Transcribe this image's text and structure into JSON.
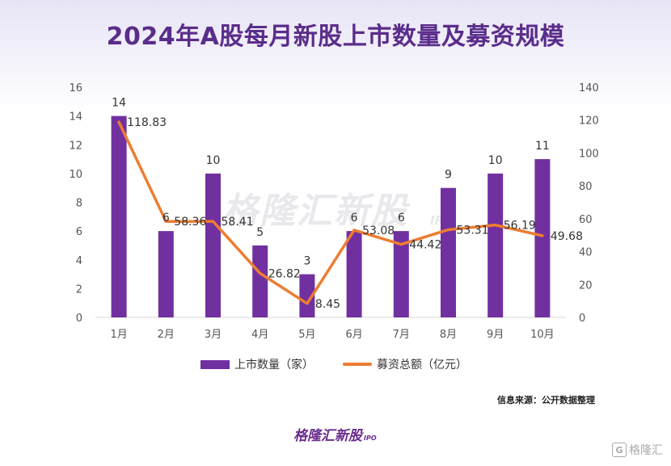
{
  "title": "2024年A股每月新股上市数量及募资规模",
  "chart_data": {
    "type": "bar",
    "categories": [
      "1月",
      "2月",
      "3月",
      "4月",
      "5月",
      "6月",
      "7月",
      "8月",
      "9月",
      "10月"
    ],
    "series": [
      {
        "name": "上市数量（家）",
        "type": "bar",
        "axis": "left",
        "color": "#7030a0",
        "values": [
          14,
          6,
          10,
          5,
          3,
          6,
          6,
          9,
          10,
          11
        ]
      },
      {
        "name": "募资总额（亿元）",
        "type": "line",
        "axis": "right",
        "color": "#ed7d31",
        "values": [
          118.83,
          58.36,
          58.41,
          26.82,
          8.45,
          53.08,
          44.42,
          53.31,
          56.19,
          49.68
        ]
      }
    ],
    "y_left": {
      "min": 0,
      "max": 16,
      "step": 2,
      "ticks": [
        "0",
        "2",
        "4",
        "6",
        "8",
        "10",
        "12",
        "14",
        "16"
      ]
    },
    "y_right": {
      "min": 0,
      "max": 140,
      "step": 20,
      "ticks": [
        "0",
        "20",
        "40",
        "60",
        "80",
        "100",
        "120",
        "140"
      ]
    },
    "grid": false,
    "legend_position": "bottom"
  },
  "legend": {
    "bar_label": "上市数量（家）",
    "line_label": "募资总额（亿元）"
  },
  "watermark": {
    "text": "格隆汇新股",
    "sub": "IPO"
  },
  "source": "信息来源：公开数据整理",
  "brand": {
    "name": "格隆汇新股",
    "sub": "IPO"
  },
  "corner_brand": {
    "icon": "G",
    "name": "格隆汇"
  }
}
